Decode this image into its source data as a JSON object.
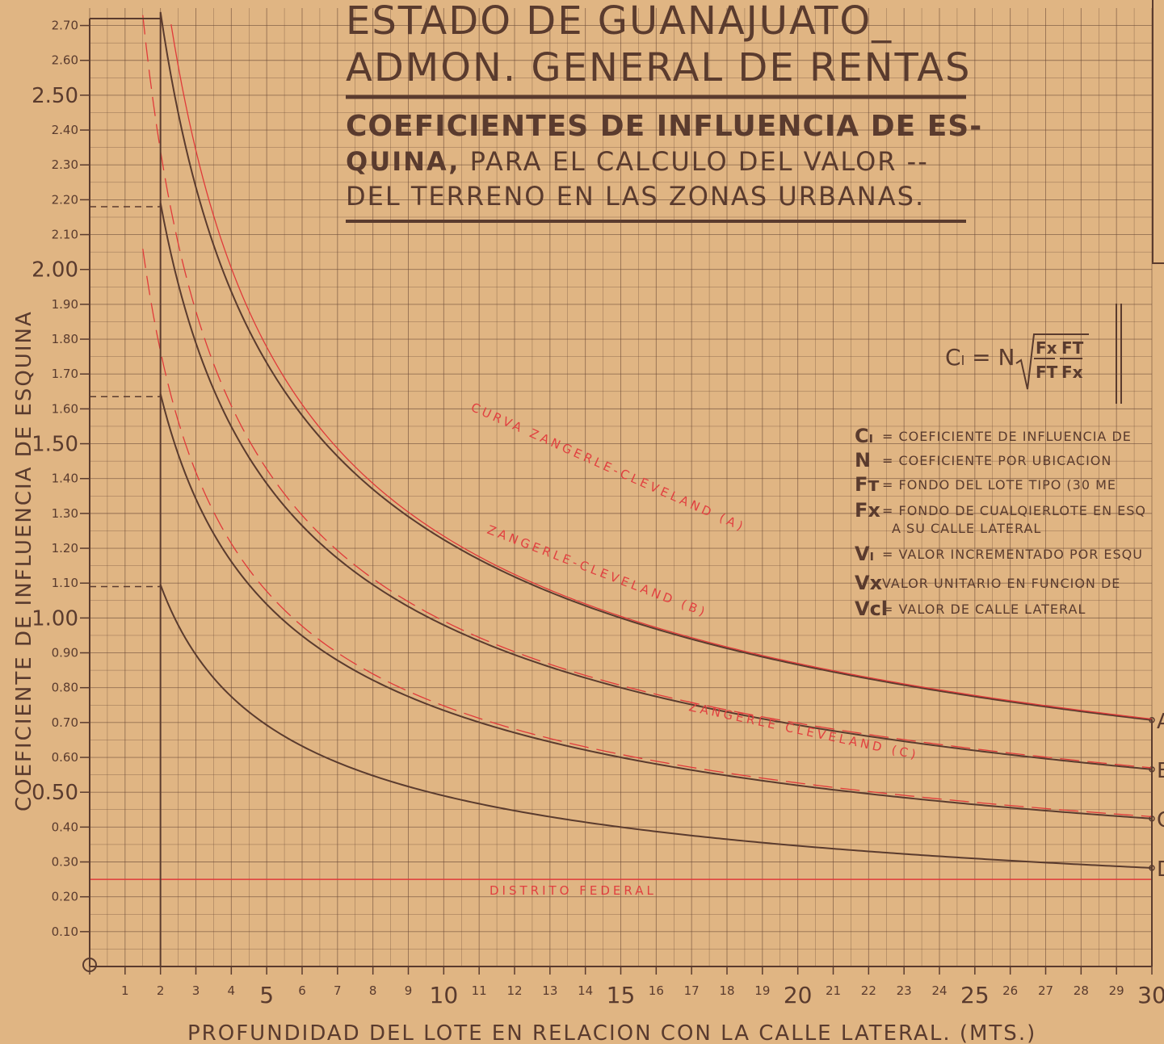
{
  "header": {
    "title_line1": "ESTADO DE GUANAJUATO_",
    "title_line2": "ADMON. GENERAL DE RENTAS",
    "subtitle_line1": "COEFICIENTES DE INFLUENCIA DE ES-",
    "subtitle_line2_bold": "QUINA,",
    "subtitle_line2_rest": " PARA EL CALCULO DEL VALOR --",
    "subtitle_line3": "DEL TERRENO EN LAS ZONAS URBANAS."
  },
  "formula": {
    "lhs": "Cₗ = N",
    "num1": "Fx",
    "den1": "FT",
    "num2": "FT",
    "den2": "Fx"
  },
  "legend": [
    {
      "sym": "Cₗ",
      "text": "= COEFICIENTE DE INFLUENCIA DE"
    },
    {
      "sym": "N",
      "text": "= COEFICIENTE POR UBICACION"
    },
    {
      "sym": "Fт",
      "text": "= FONDO DEL LOTE TIPO (30 ME"
    },
    {
      "sym": "Fx",
      "text": "= FONDO DE CUALQIERLOTE EN ESQ"
    },
    {
      "sym": "",
      "text": "A SU CALLE LATERAL"
    },
    {
      "sym": "Vₗ",
      "text": "= VALOR INCREMENTADO POR ESQU"
    },
    {
      "sym": "Vx",
      "text": "VALOR UNITARIO EN FUNCION DE"
    },
    {
      "sym": "Vcl",
      "text": "= VALOR DE CALLE LATERAL"
    }
  ],
  "chart_data": {
    "type": "line",
    "xlabel": "PROFUNDIDAD DEL LOTE EN RELACION CON LA CALLE LATERAL. (MTS.)",
    "ylabel": "COEFICIENTE DE INFLUENCIA DE ESQUINA",
    "xlim": [
      0,
      30
    ],
    "ylim": [
      0,
      2.75
    ],
    "x_ticks": [
      "0",
      "1",
      "2",
      "3",
      "4",
      "5",
      "6",
      "7",
      "8",
      "9",
      "10",
      "11",
      "12",
      "13",
      "14",
      "15",
      "16",
      "17",
      "18",
      "19",
      "20",
      "21",
      "22",
      "23",
      "24",
      "25",
      "26",
      "27",
      "28",
      "29",
      "30"
    ],
    "x_major_ticks": [
      "5",
      "10",
      "15",
      "20",
      "25",
      "30"
    ],
    "y_ticks": [
      "0.10",
      "0.20",
      "0.30",
      "0.40",
      "0.50",
      "0.60",
      "0.70",
      "0.80",
      "0.90",
      "1.00",
      "1.10",
      "1.20",
      "1.30",
      "1.40",
      "1.50",
      "1.60",
      "1.70",
      "1.80",
      "1.90",
      "2.00",
      "2.10",
      "2.20",
      "2.30",
      "2.40",
      "2.50",
      "2.60",
      "2.70"
    ],
    "y_major_ticks": [
      "0.50",
      "1.00",
      "1.50",
      "2.00",
      "2.50"
    ],
    "origin_label": "0",
    "grid": true,
    "series": [
      {
        "name": "A",
        "formula": "0.7071*sqrt(30/x)",
        "cap": 2.72,
        "dash_at": 2.72
      },
      {
        "name": "B",
        "formula": "0.5657*sqrt(30/x)",
        "cap": 2.18,
        "dash_at": 2.18
      },
      {
        "name": "C",
        "formula": "0.4243*sqrt(30/x)",
        "cap": 1.635,
        "dash_at": 1.635
      },
      {
        "name": "D",
        "formula": "0.2828*sqrt(30/x)",
        "cap": 1.09,
        "dash_at": 1.09
      }
    ],
    "reference_curves": [
      {
        "label": "CURVA  ZANGERLE-CLEVELAND (A)",
        "style": "solid-red"
      },
      {
        "label": "ZANGERLE-CLEVELAND (B)",
        "style": "dashed-red"
      },
      {
        "label": "ZANGERLE  CLEVELAND (C)",
        "style": "dashed-red"
      }
    ],
    "horizontal_lines": [
      {
        "label": "DISTRITO FEDERAL",
        "y": 0.25
      }
    ]
  }
}
